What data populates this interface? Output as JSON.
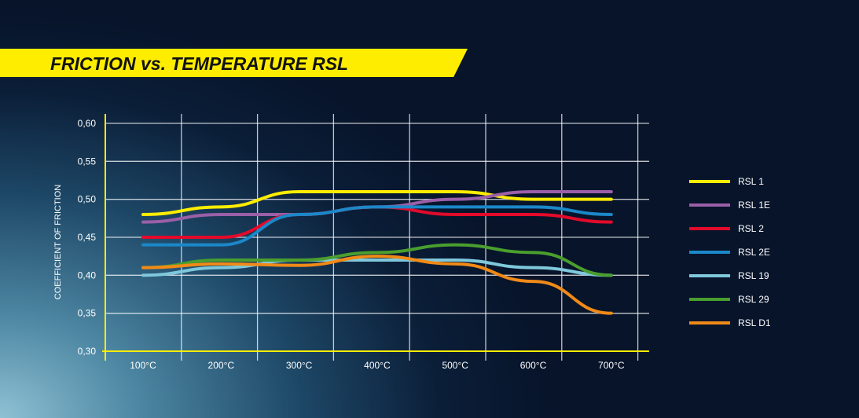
{
  "chart_data": {
    "type": "line",
    "title": "FRICTION vs. TEMPERATURE RSL",
    "xlabel": "",
    "ylabel": "COEFFICIENT OF FRICTION",
    "categories": [
      "100°C",
      "200°C",
      "300°C",
      "400°C",
      "500°C",
      "600°C",
      "700°C"
    ],
    "yticks": [
      "0,30",
      "0,35",
      "0,40",
      "0,45",
      "0,50",
      "0,55",
      "0,60"
    ],
    "ylim": [
      0.3,
      0.6
    ],
    "grid": true,
    "legend": "right",
    "series": [
      {
        "name": "RSL 1",
        "color": "#ffed00",
        "values": [
          0.48,
          0.49,
          0.51,
          0.51,
          0.51,
          0.5,
          0.5
        ]
      },
      {
        "name": "RSL 1E",
        "color": "#9b5fa8",
        "values": [
          0.47,
          0.48,
          0.48,
          0.49,
          0.5,
          0.51,
          0.51
        ]
      },
      {
        "name": "RSL 2",
        "color": "#e30a2a",
        "values": [
          0.45,
          0.45,
          0.48,
          0.49,
          0.48,
          0.48,
          0.47
        ]
      },
      {
        "name": "RSL 2E",
        "color": "#1b88c9",
        "values": [
          0.44,
          0.44,
          0.48,
          0.49,
          0.49,
          0.49,
          0.48
        ]
      },
      {
        "name": "RSL 19",
        "color": "#7fc8dc",
        "values": [
          0.4,
          0.41,
          0.42,
          0.42,
          0.42,
          0.41,
          0.4
        ]
      },
      {
        "name": "RSL 29",
        "color": "#4a9e2e",
        "values": [
          0.41,
          0.42,
          0.42,
          0.43,
          0.44,
          0.43,
          0.4
        ]
      },
      {
        "name": "RSL D1",
        "color": "#f08a17",
        "values": [
          0.41,
          0.415,
          0.413,
          0.425,
          0.415,
          0.392,
          0.35
        ]
      }
    ]
  }
}
